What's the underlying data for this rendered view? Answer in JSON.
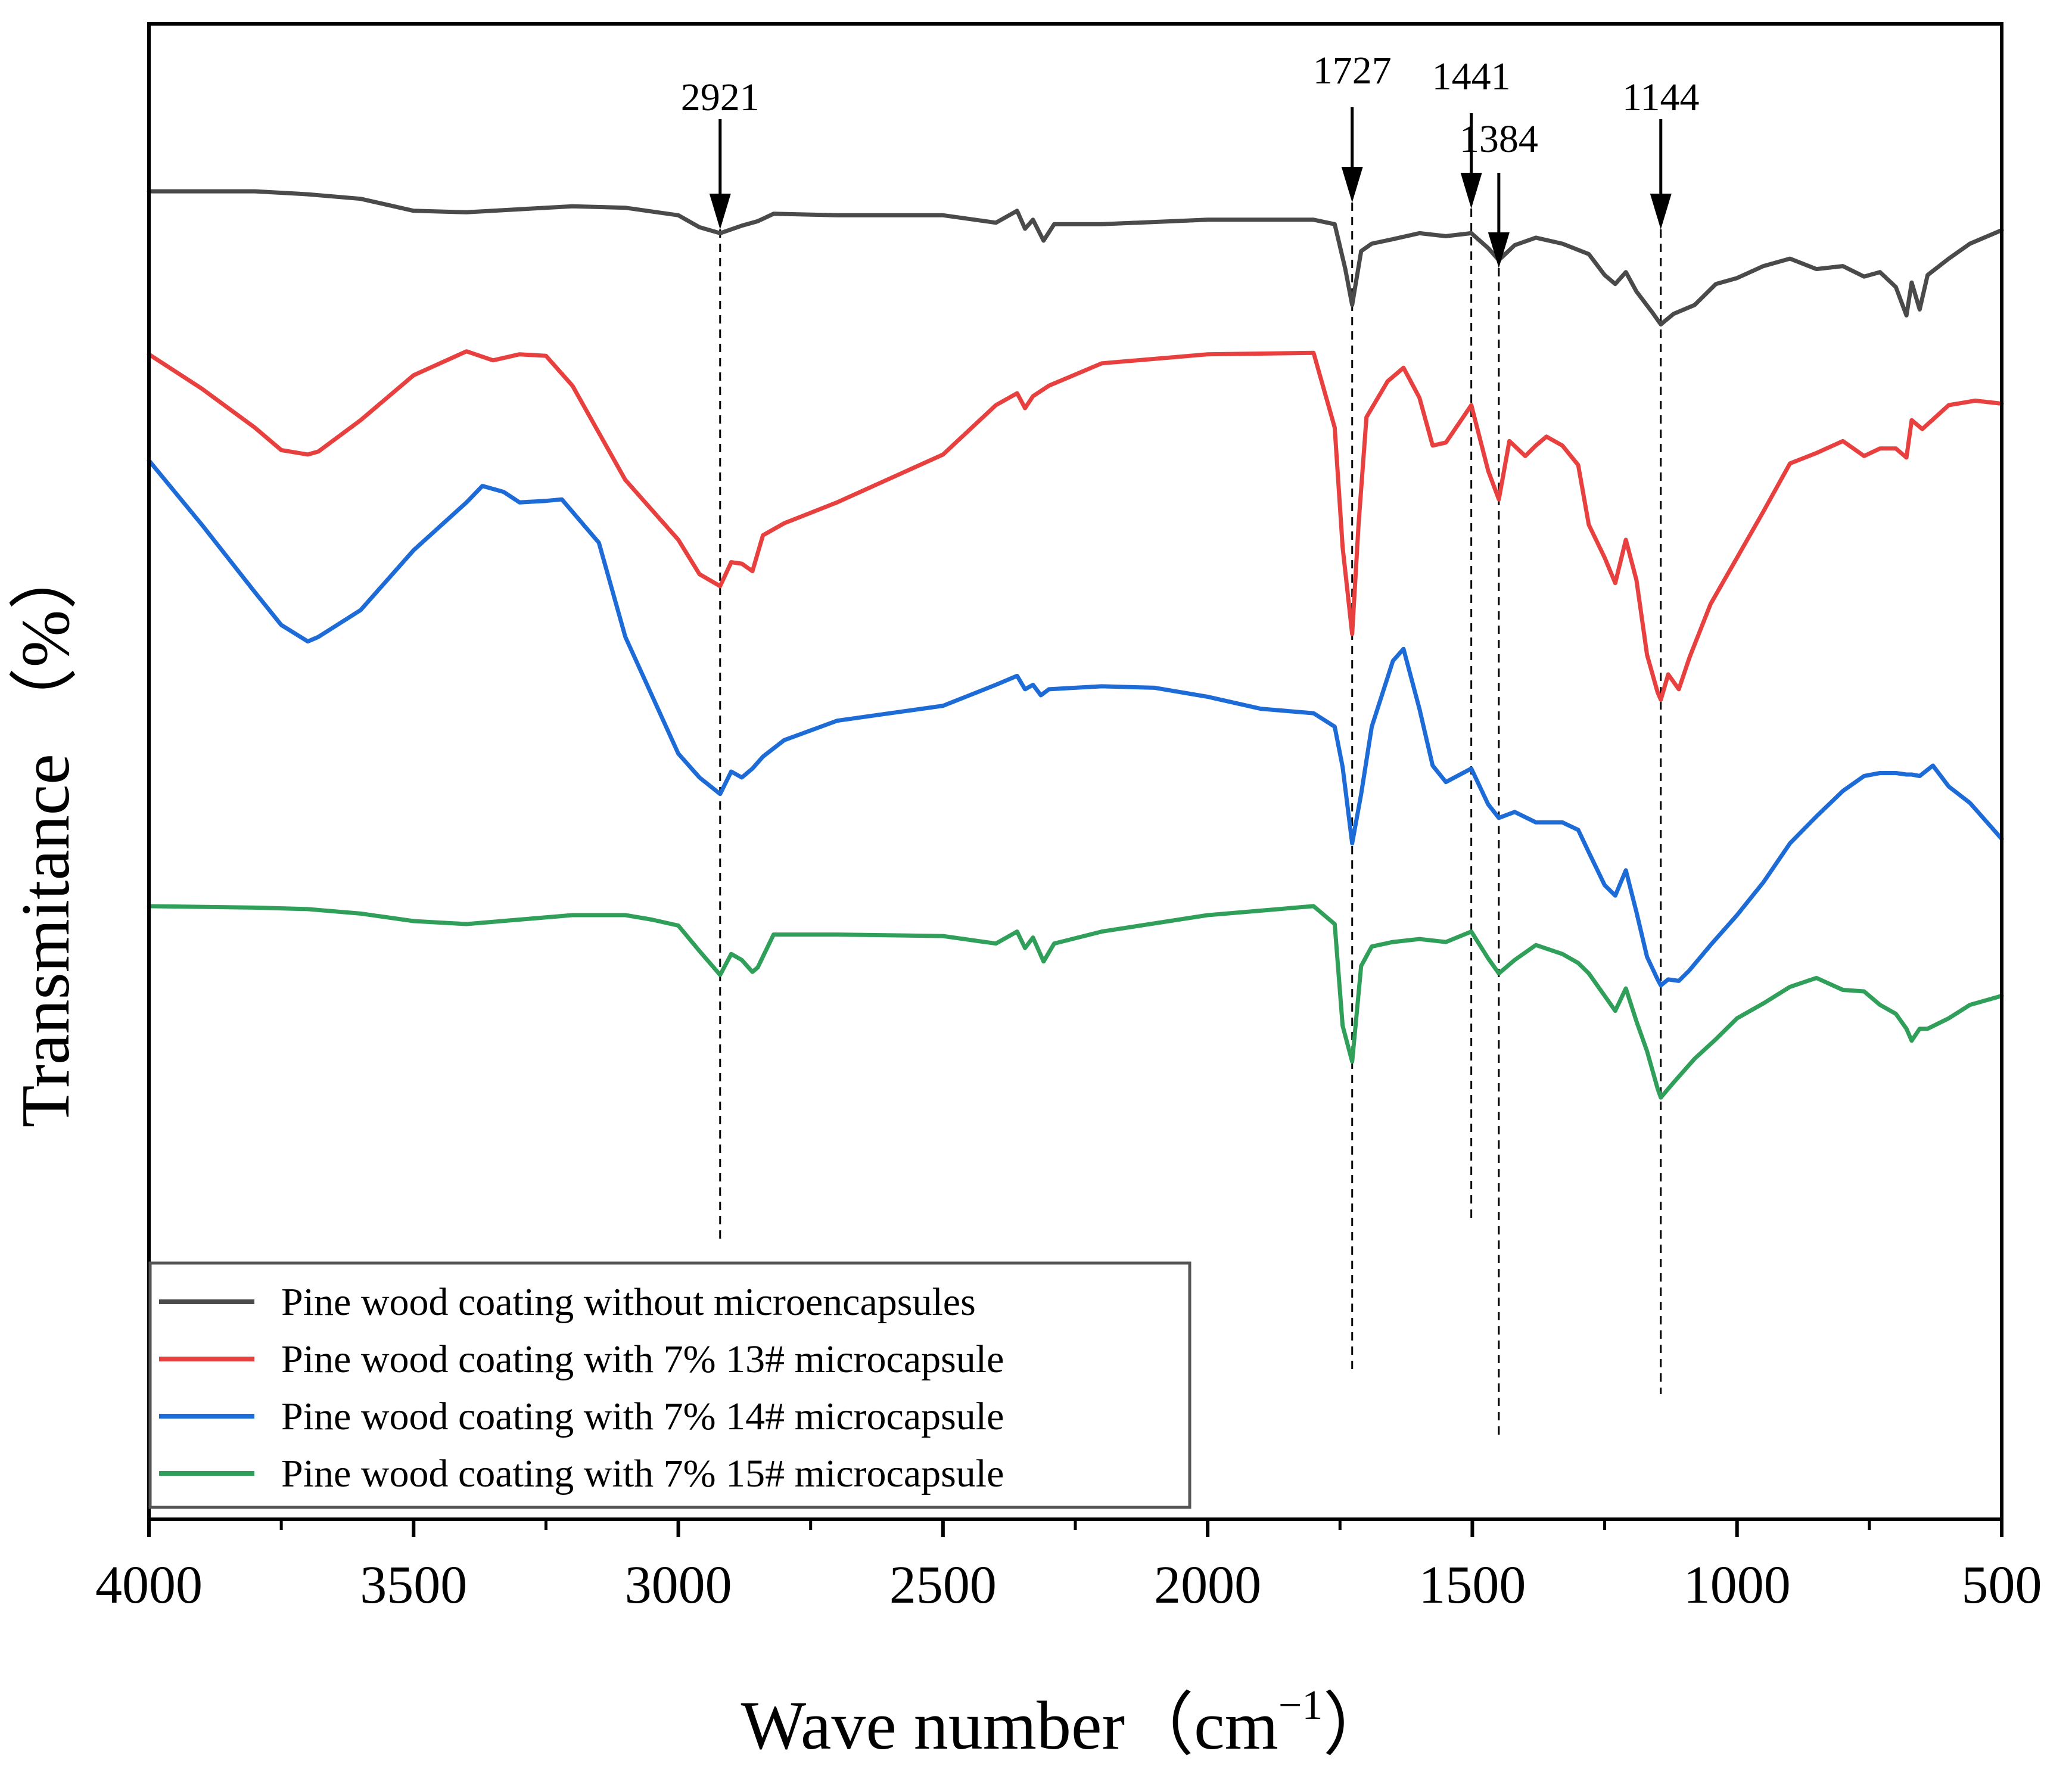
{
  "chart_data": {
    "type": "line",
    "xlabel": "Wave number（cm",
    "xlabel_sup": "−1",
    "xlabel_close": "）",
    "ylabel": "Transmitance （%）",
    "xlim": [
      4000,
      500
    ],
    "ylim": [
      0,
      100
    ],
    "x_ticks": [
      4000,
      3500,
      3000,
      2500,
      2000,
      1500,
      1000,
      500
    ],
    "y_ticks_shown": false,
    "annotations": [
      {
        "label": "2921",
        "x": 2921
      },
      {
        "label": "1727",
        "x": 1727
      },
      {
        "label": "1441",
        "x": 1502
      },
      {
        "label": "1384",
        "x": 1450
      },
      {
        "label": "1144",
        "x": 1144
      }
    ],
    "legend_position": "bottom-left",
    "series": [
      {
        "name": "Pine wood coating without microencapsules",
        "color": "#4a4a4a",
        "x": [
          4000,
          3800,
          3700,
          3600,
          3500,
          3400,
          3300,
          3200,
          3100,
          3000,
          2960,
          2921,
          2880,
          2850,
          2820,
          2700,
          2500,
          2400,
          2360,
          2345,
          2330,
          2310,
          2290,
          2200,
          2000,
          1800,
          1760,
          1740,
          1727,
          1710,
          1690,
          1650,
          1600,
          1550,
          1502,
          1470,
          1450,
          1420,
          1380,
          1330,
          1280,
          1250,
          1230,
          1210,
          1190,
          1160,
          1144,
          1120,
          1080,
          1040,
          1000,
          950,
          900,
          850,
          800,
          760,
          730,
          700,
          680,
          670,
          655,
          640,
          600,
          560,
          500
        ],
        "values": [
          88.8,
          88.8,
          88.6,
          88.3,
          87.5,
          87.4,
          87.6,
          87.8,
          87.7,
          87.2,
          86.4,
          86.0,
          86.5,
          86.8,
          87.3,
          87.2,
          87.2,
          86.7,
          87.5,
          86.3,
          86.9,
          85.5,
          86.6,
          86.6,
          86.9,
          86.9,
          86.6,
          83.6,
          81.2,
          84.8,
          85.3,
          85.6,
          86.0,
          85.8,
          86.0,
          85.0,
          84.2,
          85.2,
          85.7,
          85.3,
          84.6,
          83.2,
          82.6,
          83.4,
          82.1,
          80.7,
          79.9,
          80.6,
          81.2,
          82.6,
          83.0,
          83.8,
          84.3,
          83.6,
          83.8,
          83.1,
          83.4,
          82.4,
          80.5,
          82.7,
          80.9,
          83.2,
          84.3,
          85.3,
          86.2
        ]
      },
      {
        "name": "Pine wood coating with 7% 13# microcapsule",
        "color": "#e8403f",
        "x": [
          4000,
          3900,
          3800,
          3750,
          3700,
          3680,
          3600,
          3500,
          3400,
          3350,
          3300,
          3250,
          3200,
          3100,
          3000,
          2960,
          2921,
          2900,
          2880,
          2860,
          2840,
          2800,
          2700,
          2500,
          2400,
          2360,
          2345,
          2330,
          2300,
          2200,
          2000,
          1800,
          1760,
          1745,
          1727,
          1715,
          1700,
          1660,
          1630,
          1600,
          1575,
          1550,
          1502,
          1470,
          1450,
          1430,
          1400,
          1380,
          1360,
          1330,
          1300,
          1280,
          1250,
          1230,
          1210,
          1190,
          1170,
          1150,
          1144,
          1130,
          1110,
          1090,
          1050,
          1000,
          950,
          900,
          850,
          800,
          760,
          730,
          700,
          680,
          670,
          650,
          600,
          550,
          500
        ],
        "values": [
          77.9,
          75.6,
          73.0,
          71.5,
          71.2,
          71.4,
          73.5,
          76.5,
          78.1,
          77.5,
          77.9,
          77.8,
          75.8,
          69.5,
          65.5,
          63.2,
          62.4,
          64.0,
          63.9,
          63.4,
          65.8,
          66.6,
          68.0,
          71.2,
          74.5,
          75.3,
          74.3,
          75.1,
          75.8,
          77.3,
          77.9,
          78.0,
          73.0,
          65.0,
          59.2,
          66.5,
          73.7,
          76.1,
          77.0,
          75.0,
          71.8,
          72.0,
          74.5,
          70.1,
          68.2,
          72.1,
          71.1,
          71.8,
          72.4,
          71.8,
          70.5,
          66.5,
          64.3,
          62.6,
          65.5,
          62.8,
          57.8,
          55.3,
          54.8,
          56.5,
          55.5,
          57.6,
          61.2,
          64.3,
          67.4,
          70.6,
          71.3,
          72.1,
          71.1,
          71.6,
          71.6,
          71.0,
          73.5,
          72.9,
          74.5,
          74.8,
          74.6
        ]
      },
      {
        "name": "Pine wood coating with 7% 14# microcapsule",
        "color": "#1c6bd6",
        "x": [
          4000,
          3900,
          3800,
          3750,
          3700,
          3680,
          3600,
          3500,
          3400,
          3370,
          3330,
          3300,
          3250,
          3220,
          3150,
          3100,
          3000,
          2960,
          2921,
          2900,
          2880,
          2860,
          2840,
          2800,
          2700,
          2500,
          2400,
          2360,
          2345,
          2330,
          2315,
          2300,
          2200,
          2100,
          2000,
          1900,
          1800,
          1760,
          1745,
          1727,
          1710,
          1690,
          1650,
          1630,
          1600,
          1575,
          1550,
          1502,
          1470,
          1450,
          1420,
          1380,
          1330,
          1300,
          1280,
          1250,
          1230,
          1210,
          1190,
          1170,
          1150,
          1144,
          1130,
          1110,
          1090,
          1050,
          1000,
          950,
          900,
          850,
          800,
          760,
          730,
          700,
          680,
          670,
          655,
          630,
          600,
          560,
          500
        ],
        "values": [
          70.8,
          66.5,
          62.0,
          59.8,
          58.7,
          59.0,
          60.8,
          64.8,
          68.0,
          69.1,
          68.7,
          68.0,
          68.1,
          68.2,
          65.3,
          59.0,
          51.2,
          49.6,
          48.5,
          50.0,
          49.6,
          50.2,
          51.0,
          52.1,
          53.4,
          54.4,
          55.8,
          56.4,
          55.5,
          55.8,
          55.1,
          55.5,
          55.7,
          55.6,
          55.0,
          54.2,
          53.9,
          53.0,
          50.3,
          45.2,
          48.5,
          53.0,
          57.4,
          58.2,
          54.2,
          50.4,
          49.3,
          50.2,
          47.8,
          46.9,
          47.3,
          46.6,
          46.6,
          46.1,
          44.6,
          42.4,
          41.7,
          43.4,
          40.6,
          37.6,
          36.1,
          35.7,
          36.1,
          36.0,
          36.7,
          38.4,
          40.4,
          42.6,
          45.2,
          47.0,
          48.7,
          49.7,
          49.9,
          49.9,
          49.8,
          49.8,
          49.7,
          50.4,
          49.0,
          47.9,
          45.5
        ]
      },
      {
        "name": "Pine wood coating with 7% 15# microcapsule",
        "color": "#2f9f5a",
        "x": [
          4000,
          3800,
          3700,
          3600,
          3500,
          3400,
          3300,
          3200,
          3100,
          3050,
          3000,
          2960,
          2921,
          2900,
          2880,
          2860,
          2850,
          2820,
          2700,
          2500,
          2400,
          2360,
          2345,
          2330,
          2310,
          2290,
          2200,
          2000,
          1800,
          1760,
          1745,
          1727,
          1710,
          1690,
          1650,
          1600,
          1550,
          1502,
          1470,
          1450,
          1420,
          1380,
          1330,
          1300,
          1280,
          1250,
          1230,
          1210,
          1190,
          1170,
          1150,
          1144,
          1120,
          1080,
          1040,
          1000,
          950,
          900,
          850,
          800,
          760,
          730,
          700,
          680,
          670,
          655,
          640,
          600,
          560,
          500
        ],
        "values": [
          41.0,
          40.9,
          40.8,
          40.5,
          40.0,
          39.8,
          40.1,
          40.4,
          40.4,
          40.1,
          39.7,
          38.0,
          36.4,
          37.8,
          37.4,
          36.6,
          36.9,
          39.1,
          39.1,
          39.0,
          38.5,
          39.3,
          38.2,
          38.9,
          37.3,
          38.5,
          39.3,
          40.4,
          41.0,
          39.8,
          33.0,
          30.6,
          37.0,
          38.3,
          38.6,
          38.8,
          38.6,
          39.3,
          37.5,
          36.5,
          37.4,
          38.4,
          37.8,
          37.2,
          36.5,
          35.0,
          34.0,
          35.5,
          33.3,
          31.3,
          28.8,
          28.2,
          29.2,
          30.8,
          32.1,
          33.5,
          34.5,
          35.6,
          36.2,
          35.4,
          35.3,
          34.4,
          33.8,
          32.8,
          32.0,
          32.8,
          32.8,
          33.5,
          34.4,
          35.0
        ]
      }
    ]
  }
}
